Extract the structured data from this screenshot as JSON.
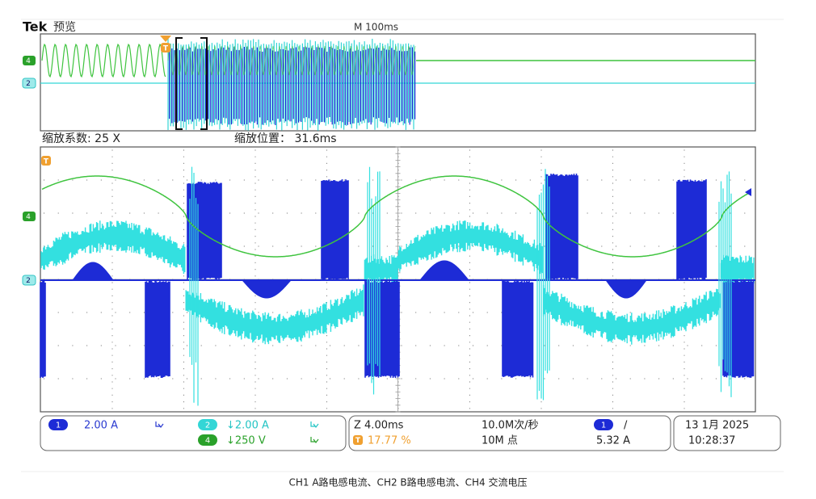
{
  "header": {
    "brand": "Tek",
    "mode": "预览",
    "timebase": "M 100ms"
  },
  "zoom": {
    "factor": "缩放系数: 25 X",
    "position": "缩放位置： 31.6ms"
  },
  "markers": {
    "ch4": "4",
    "ch2": "2",
    "trigger": "T"
  },
  "status": {
    "ch1": {
      "badge": "1",
      "scale": "2.00 A"
    },
    "ch2": {
      "badge": "2",
      "scale": "↓2.00 A"
    },
    "ch4": {
      "badge": "4",
      "scale": "↓250 V"
    },
    "zoom_scale": "Z 4.00ms",
    "trigger_position": {
      "badge": "T",
      "value": "17.77 %"
    },
    "sample_rate": "10.0M次/秒",
    "record_length": "10M 点",
    "trigger": {
      "badge": "1",
      "slope": "/",
      "level": "5.32 A"
    },
    "date": "13 1月 2025",
    "time": "10:28:37"
  },
  "caption": "CH1 A路电感电流、CH2 B路电感电流、CH4 交流电压"
}
